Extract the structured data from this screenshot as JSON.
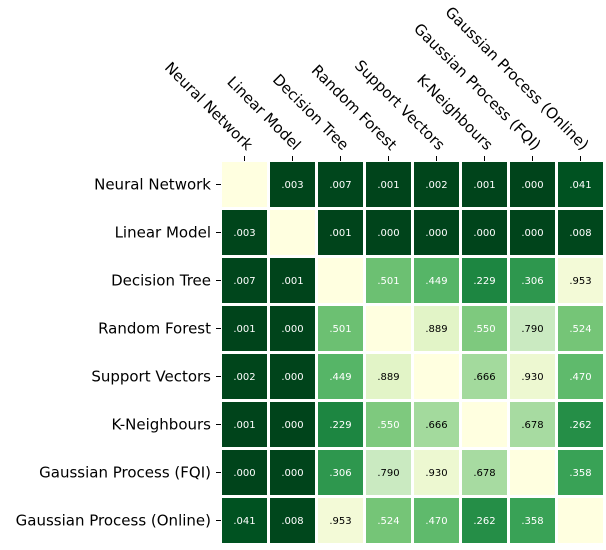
{
  "chart_data": {
    "type": "heatmap",
    "title": "",
    "labels": [
      "Neural Network",
      "Linear Model",
      "Decision Tree",
      "Random Forest",
      "Support Vectors",
      "K-Neighbours",
      "Gaussian Process (FQI)",
      "Gaussian Process (Online)"
    ],
    "values": [
      [
        null,
        0.003,
        0.007,
        0.001,
        0.002,
        0.001,
        0.0,
        0.041
      ],
      [
        0.003,
        null,
        0.001,
        0.0,
        0.0,
        0.0,
        0.0,
        0.008
      ],
      [
        0.007,
        0.001,
        null,
        0.501,
        0.449,
        0.229,
        0.306,
        0.953
      ],
      [
        0.001,
        0.0,
        0.501,
        null,
        0.889,
        0.55,
        0.79,
        0.524
      ],
      [
        0.002,
        0.0,
        0.449,
        0.889,
        null,
        0.666,
        0.93,
        0.47
      ],
      [
        0.001,
        0.0,
        0.229,
        0.55,
        0.666,
        null,
        0.678,
        0.262
      ],
      [
        0.0,
        0.0,
        0.306,
        0.79,
        0.93,
        0.678,
        null,
        0.358
      ],
      [
        0.041,
        0.008,
        0.953,
        0.524,
        0.47,
        0.262,
        0.358,
        null
      ]
    ],
    "cell_labels": [
      [
        "",
        ".003",
        ".007",
        ".001",
        ".002",
        ".001",
        ".000",
        ".041"
      ],
      [
        ".003",
        "",
        ".001",
        ".000",
        ".000",
        ".000",
        ".000",
        ".008"
      ],
      [
        ".007",
        ".001",
        "",
        ".501",
        ".449",
        ".229",
        ".306",
        ".953"
      ],
      [
        ".001",
        ".000",
        ".501",
        "",
        ".889",
        ".550",
        ".790",
        ".524"
      ],
      [
        ".002",
        ".000",
        ".449",
        ".889",
        "",
        ".666",
        ".930",
        ".470"
      ],
      [
        ".001",
        ".000",
        ".229",
        ".550",
        ".666",
        "",
        ".678",
        ".262"
      ],
      [
        ".000",
        ".000",
        ".306",
        ".790",
        ".930",
        ".678",
        "",
        ".358"
      ],
      [
        ".041",
        ".008",
        ".953",
        ".524",
        ".470",
        ".262",
        ".358",
        ""
      ]
    ],
    "colormap": "greens-reversed",
    "color_low": "#00441b",
    "color_high": "#ffffe5",
    "diagonal_color": "#ffffe0",
    "value_range": [
      0,
      1
    ],
    "x_axis_position": "top",
    "grid": false,
    "legend": "none"
  }
}
